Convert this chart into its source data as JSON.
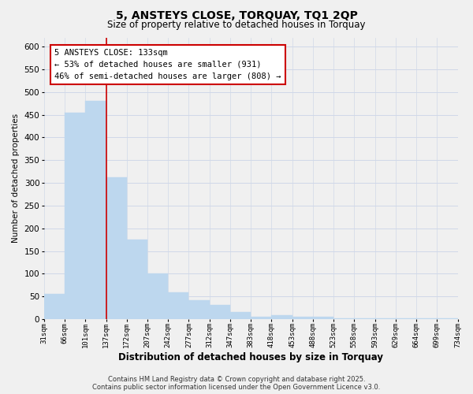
{
  "title": "5, ANSTEYS CLOSE, TORQUAY, TQ1 2QP",
  "subtitle": "Size of property relative to detached houses in Torquay",
  "bar_heights": [
    55,
    455,
    480,
    312,
    175,
    100,
    59,
    42,
    32,
    15,
    6,
    9,
    6,
    6,
    2,
    2,
    2,
    2,
    1,
    1
  ],
  "bar_labels": [
    "31sqm",
    "66sqm",
    "101sqm",
    "137sqm",
    "172sqm",
    "207sqm",
    "242sqm",
    "277sqm",
    "312sqm",
    "347sqm",
    "383sqm",
    "418sqm",
    "453sqm",
    "488sqm",
    "523sqm",
    "558sqm",
    "593sqm",
    "629sqm",
    "664sqm",
    "699sqm",
    "734sqm"
  ],
  "bar_color": "#bdd7ee",
  "vline_x": 3,
  "vline_color": "#cc0000",
  "ylabel": "Number of detached properties",
  "xlabel": "Distribution of detached houses by size in Torquay",
  "ylim": [
    0,
    620
  ],
  "yticks": [
    0,
    50,
    100,
    150,
    200,
    250,
    300,
    350,
    400,
    450,
    500,
    550,
    600
  ],
  "annotation_title": "5 ANSTEYS CLOSE: 133sqm",
  "annotation_line1": "← 53% of detached houses are smaller (931)",
  "annotation_line2": "46% of semi-detached houses are larger (808) →",
  "footer_line1": "Contains HM Land Registry data © Crown copyright and database right 2025.",
  "footer_line2": "Contains public sector information licensed under the Open Government Licence v3.0.",
  "background_color": "#f0f0f0",
  "grid_color": "#d0d8e8"
}
